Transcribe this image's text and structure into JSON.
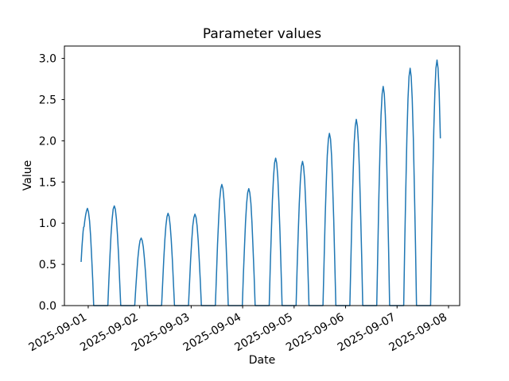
{
  "figure": {
    "title": "Parameter values",
    "xlabel": "Date",
    "ylabel": "Value"
  },
  "chart_data": {
    "type": "line",
    "title": "Parameter values",
    "xlabel": "Date",
    "ylabel": "Value",
    "grid": false,
    "legend": "none",
    "line_color": "#1f77b4",
    "line_width": 1.5,
    "axis_color": "#000000",
    "x_unit": "hours since 2025-09-01 00:00",
    "xlim": [
      -11.1,
      173.2
    ],
    "ylim": [
      0,
      3.15
    ],
    "y_ticks": [
      {
        "value": 0.0,
        "label": "0.0"
      },
      {
        "value": 0.5,
        "label": "0.5"
      },
      {
        "value": 1.0,
        "label": "1.0"
      },
      {
        "value": 1.5,
        "label": "1.5"
      },
      {
        "value": 2.0,
        "label": "2.0"
      },
      {
        "value": 2.5,
        "label": "2.5"
      },
      {
        "value": 3.0,
        "label": "3.0"
      }
    ],
    "x_ticks": [
      {
        "t": 0,
        "label": "2025-09-01"
      },
      {
        "t": 24,
        "label": "2025-09-02"
      },
      {
        "t": 48,
        "label": "2025-09-03"
      },
      {
        "t": 72,
        "label": "2025-09-04"
      },
      {
        "t": 96,
        "label": "2025-09-05"
      },
      {
        "t": 120,
        "label": "2025-09-06"
      },
      {
        "t": 144,
        "label": "2025-09-07"
      },
      {
        "t": 168,
        "label": "2025-09-08"
      }
    ],
    "x_tick_label_rotation_deg": 30,
    "peaks": {
      "hours": [
        -0.4,
        12.14,
        24.68,
        37.22,
        49.76,
        62.3,
        74.84,
        87.38,
        99.92,
        112.46,
        125.0,
        137.54,
        150.08,
        162.62
      ],
      "values": [
        1.18,
        1.21,
        0.82,
        1.12,
        1.11,
        1.47,
        1.42,
        1.79,
        1.75,
        2.09,
        2.26,
        2.66,
        2.88,
        2.98
      ]
    },
    "series_note": "half-day humps clipped at 0; [hours, value] pairs; starts mid-rise at 0.53, ends mid-fall at 2.03",
    "series": [
      [
        -3.3,
        0.53
      ],
      [
        -2.9,
        0.72
      ],
      [
        -2.4,
        0.9
      ],
      [
        -2.15,
        0.95
      ],
      [
        -1.9,
        0.96
      ],
      [
        -1.6,
        1.03
      ],
      [
        -1.2,
        1.1
      ],
      [
        -0.8,
        1.15
      ],
      [
        -0.4,
        1.18
      ],
      [
        0.1,
        1.14
      ],
      [
        0.6,
        1.03
      ],
      [
        1.1,
        0.85
      ],
      [
        1.6,
        0.6
      ],
      [
        2.1,
        0.31
      ],
      [
        2.55,
        0
      ],
      [
        9.14,
        0
      ],
      [
        9.64,
        0.31
      ],
      [
        10.14,
        0.61
      ],
      [
        10.64,
        0.86
      ],
      [
        11.14,
        1.05
      ],
      [
        11.64,
        1.17
      ],
      [
        12.14,
        1.21
      ],
      [
        12.64,
        1.17
      ],
      [
        13.14,
        1.05
      ],
      [
        13.64,
        0.86
      ],
      [
        14.14,
        0.61
      ],
      [
        14.64,
        0.31
      ],
      [
        15.14,
        0
      ],
      [
        21.68,
        0
      ],
      [
        22.18,
        0.21
      ],
      [
        22.68,
        0.41
      ],
      [
        23.18,
        0.58
      ],
      [
        23.68,
        0.71
      ],
      [
        24.18,
        0.79
      ],
      [
        24.68,
        0.82
      ],
      [
        25.18,
        0.79
      ],
      [
        25.68,
        0.71
      ],
      [
        26.18,
        0.58
      ],
      [
        26.68,
        0.41
      ],
      [
        27.18,
        0.21
      ],
      [
        27.68,
        0
      ],
      [
        34.22,
        0
      ],
      [
        34.72,
        0.29
      ],
      [
        35.22,
        0.56
      ],
      [
        35.72,
        0.8
      ],
      [
        36.22,
        0.97
      ],
      [
        36.72,
        1.08
      ],
      [
        37.22,
        1.12
      ],
      [
        37.72,
        1.08
      ],
      [
        38.22,
        0.97
      ],
      [
        38.72,
        0.8
      ],
      [
        39.22,
        0.56
      ],
      [
        39.72,
        0.29
      ],
      [
        40.22,
        0
      ],
      [
        46.76,
        0
      ],
      [
        47.26,
        0.29
      ],
      [
        47.76,
        0.56
      ],
      [
        48.26,
        0.79
      ],
      [
        48.76,
        0.97
      ],
      [
        49.26,
        1.07
      ],
      [
        49.76,
        1.11
      ],
      [
        50.26,
        1.07
      ],
      [
        50.76,
        0.97
      ],
      [
        51.26,
        0.79
      ],
      [
        51.76,
        0.56
      ],
      [
        52.26,
        0.29
      ],
      [
        52.76,
        0
      ],
      [
        59.3,
        0
      ],
      [
        59.8,
        0.38
      ],
      [
        60.3,
        0.74
      ],
      [
        60.8,
        1.04
      ],
      [
        61.3,
        1.28
      ],
      [
        61.8,
        1.42
      ],
      [
        62.3,
        1.47
      ],
      [
        62.8,
        1.42
      ],
      [
        63.3,
        1.28
      ],
      [
        63.8,
        1.04
      ],
      [
        64.3,
        0.74
      ],
      [
        64.8,
        0.38
      ],
      [
        65.3,
        0
      ],
      [
        71.84,
        0
      ],
      [
        72.34,
        0.37
      ],
      [
        72.84,
        0.71
      ],
      [
        73.34,
        1.01
      ],
      [
        73.84,
        1.24
      ],
      [
        74.34,
        1.37
      ],
      [
        74.84,
        1.42
      ],
      [
        75.34,
        1.37
      ],
      [
        75.84,
        1.24
      ],
      [
        76.34,
        1.01
      ],
      [
        76.84,
        0.71
      ],
      [
        77.34,
        0.37
      ],
      [
        77.84,
        0
      ],
      [
        84.38,
        0
      ],
      [
        84.88,
        0.47
      ],
      [
        85.38,
        0.9
      ],
      [
        85.88,
        1.27
      ],
      [
        86.38,
        1.56
      ],
      [
        86.88,
        1.73
      ],
      [
        87.38,
        1.79
      ],
      [
        87.88,
        1.73
      ],
      [
        88.38,
        1.56
      ],
      [
        88.88,
        1.27
      ],
      [
        89.38,
        0.9
      ],
      [
        89.88,
        0.47
      ],
      [
        90.38,
        0
      ],
      [
        96.92,
        0
      ],
      [
        97.42,
        0.46
      ],
      [
        97.92,
        0.88
      ],
      [
        98.42,
        1.24
      ],
      [
        98.92,
        1.52
      ],
      [
        99.42,
        1.69
      ],
      [
        99.92,
        1.75
      ],
      [
        100.42,
        1.69
      ],
      [
        100.92,
        1.52
      ],
      [
        101.42,
        1.24
      ],
      [
        101.92,
        0.88
      ],
      [
        102.42,
        0.46
      ],
      [
        102.92,
        0
      ],
      [
        109.46,
        0
      ],
      [
        109.96,
        0.54
      ],
      [
        110.46,
        1.05
      ],
      [
        110.96,
        1.48
      ],
      [
        111.46,
        1.82
      ],
      [
        111.96,
        2.02
      ],
      [
        112.46,
        2.09
      ],
      [
        112.96,
        2.02
      ],
      [
        113.46,
        1.82
      ],
      [
        113.96,
        1.48
      ],
      [
        114.46,
        1.05
      ],
      [
        114.96,
        0.54
      ],
      [
        115.46,
        0
      ],
      [
        122,
        0
      ],
      [
        122.5,
        0.59
      ],
      [
        123,
        1.13
      ],
      [
        123.5,
        1.6
      ],
      [
        124,
        1.97
      ],
      [
        124.5,
        2.18
      ],
      [
        125,
        2.26
      ],
      [
        125.5,
        2.18
      ],
      [
        126,
        1.97
      ],
      [
        126.5,
        1.6
      ],
      [
        127,
        1.13
      ],
      [
        127.5,
        0.59
      ],
      [
        128,
        0
      ],
      [
        134.54,
        0
      ],
      [
        135.04,
        0.69
      ],
      [
        135.54,
        1.33
      ],
      [
        136.04,
        1.89
      ],
      [
        136.54,
        2.31
      ],
      [
        137.04,
        2.57
      ],
      [
        137.54,
        2.66
      ],
      [
        138.04,
        2.57
      ],
      [
        138.54,
        2.31
      ],
      [
        139.04,
        1.89
      ],
      [
        139.54,
        1.33
      ],
      [
        140.04,
        0.69
      ],
      [
        140.54,
        0
      ],
      [
        147.08,
        0
      ],
      [
        147.58,
        0.75
      ],
      [
        148.08,
        1.44
      ],
      [
        148.58,
        2.04
      ],
      [
        149.08,
        2.51
      ],
      [
        149.58,
        2.78
      ],
      [
        150.08,
        2.88
      ],
      [
        150.58,
        2.78
      ],
      [
        151.08,
        2.51
      ],
      [
        151.58,
        2.04
      ],
      [
        152.08,
        1.44
      ],
      [
        152.58,
        0.75
      ],
      [
        153.08,
        0
      ],
      [
        159.62,
        0
      ],
      [
        160.12,
        0.77
      ],
      [
        160.62,
        1.49
      ],
      [
        161.12,
        2.12
      ],
      [
        161.62,
        2.59
      ],
      [
        162.12,
        2.88
      ],
      [
        162.62,
        2.98
      ],
      [
        163.12,
        2.88
      ],
      [
        163.62,
        2.59
      ],
      [
        164.2,
        2.03
      ]
    ]
  }
}
